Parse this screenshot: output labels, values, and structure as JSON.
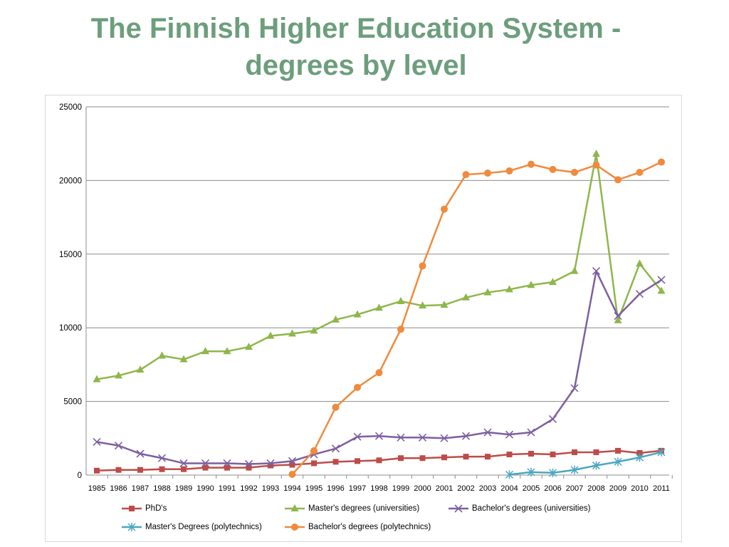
{
  "slide": {
    "title_line1": "The Finnish Higher Education System -",
    "title_line2": "degrees by level"
  },
  "chart_data": {
    "type": "line",
    "title": "",
    "xlabel": "",
    "ylabel": "",
    "ylim": [
      0,
      25000
    ],
    "yticks": [
      "0",
      "5000",
      "10000",
      "15000",
      "20000",
      "25000"
    ],
    "grid": "horizontal",
    "legend_position": "bottom",
    "x": [
      "1985",
      "1986",
      "1987",
      "1988",
      "1989",
      "1990",
      "1991",
      "1992",
      "1993",
      "1994",
      "1995",
      "1996",
      "1997",
      "1998",
      "1999",
      "2000",
      "2001",
      "2002",
      "2003",
      "2004",
      "2005",
      "2006",
      "2007",
      "2008",
      "2009",
      "2010",
      "2011"
    ],
    "series": [
      {
        "name": "PhD's",
        "color": "#be4b48",
        "marker": "square",
        "values": [
          300,
          350,
          350,
          400,
          400,
          500,
          500,
          500,
          650,
          700,
          800,
          900,
          950,
          1000,
          1150,
          1150,
          1200,
          1250,
          1250,
          1400,
          1450,
          1400,
          1550,
          1550,
          1650,
          1500,
          1650
        ]
      },
      {
        "name": "Master's degrees (universities)",
        "color": "#8fb64b",
        "marker": "triangle",
        "values": [
          6500,
          6750,
          7150,
          8100,
          7850,
          8400,
          8400,
          8700,
          9450,
          9600,
          9800,
          10550,
          10900,
          11350,
          11800,
          11500,
          11550,
          12050,
          12400,
          12600,
          12900,
          13100,
          13850,
          21800,
          10500,
          14350,
          12500
        ]
      },
      {
        "name": "Bachelor's degrees (universities)",
        "color": "#7d5fa0",
        "marker": "x",
        "values": [
          2250,
          2000,
          1450,
          1150,
          800,
          800,
          800,
          750,
          800,
          950,
          1400,
          1800,
          2600,
          2650,
          2550,
          2550,
          2500,
          2650,
          2900,
          2750,
          2900,
          3800,
          5900,
          13850,
          10800,
          12300,
          13250
        ]
      },
      {
        "name": "Master's Degrees (polytechnics)",
        "color": "#4ba6c0",
        "marker": "star",
        "values": [
          null,
          null,
          null,
          null,
          null,
          null,
          null,
          null,
          null,
          null,
          null,
          null,
          null,
          null,
          null,
          null,
          null,
          null,
          null,
          30,
          200,
          150,
          350,
          650,
          900,
          1200,
          1550
        ]
      },
      {
        "name": "Bachelor's degrees (polytechnics)",
        "color": "#f08a3c",
        "marker": "circle",
        "values": [
          null,
          null,
          null,
          null,
          null,
          null,
          null,
          null,
          null,
          50,
          1650,
          4600,
          5950,
          6950,
          9900,
          14200,
          18050,
          20400,
          20500,
          20650,
          21100,
          20750,
          20550,
          21050,
          20050,
          20550,
          21250
        ]
      }
    ]
  }
}
